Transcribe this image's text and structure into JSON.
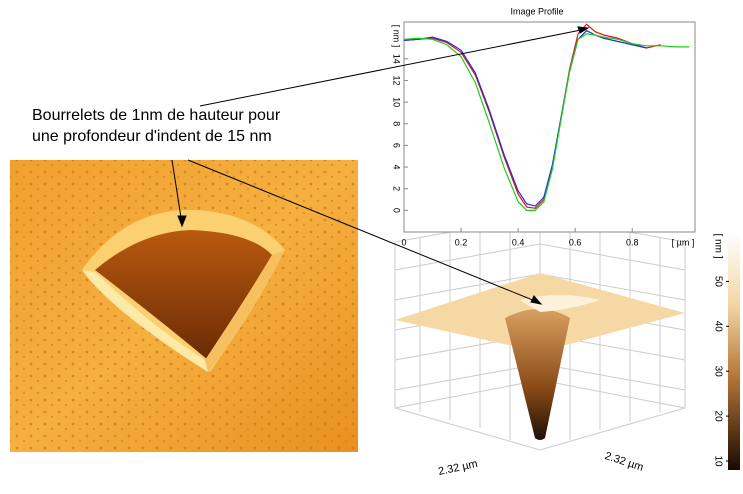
{
  "chart_data": {
    "type": "line",
    "title": "Image Profile",
    "x_label": "[ µm ]",
    "y_label": "[ nm ]",
    "x": [
      0,
      0.05,
      0.1,
      0.15,
      0.2,
      0.25,
      0.3,
      0.35,
      0.4,
      0.43,
      0.46,
      0.49,
      0.52,
      0.55,
      0.58,
      0.61,
      0.64,
      0.67,
      0.7,
      0.75,
      0.8,
      0.85,
      0.9,
      0.95,
      1.0
    ],
    "series": [
      {
        "name": "red",
        "color": "#e8101a",
        "values": [
          15.7,
          15.8,
          15.9,
          15.5,
          14.6,
          12.5,
          9,
          5,
          1.5,
          0.3,
          0.2,
          1,
          4,
          8.5,
          13,
          16.3,
          17.2,
          16.5,
          16.2,
          15.9,
          15.4,
          15.0,
          15.3,
          null,
          null
        ]
      },
      {
        "name": "blue",
        "color": "#2030e0",
        "values": [
          15.7,
          15.8,
          16.0,
          15.6,
          14.8,
          12.7,
          9.2,
          5.2,
          1.8,
          0.6,
          0.4,
          1.2,
          4.2,
          8.5,
          12.8,
          15.8,
          16.6,
          16.2,
          15.9,
          15.6,
          15.3,
          15.0,
          null,
          null,
          null
        ]
      },
      {
        "name": "green",
        "color": "#18d018",
        "values": [
          15.8,
          15.9,
          15.8,
          15.3,
          14.2,
          11.8,
          8,
          4,
          0.8,
          0,
          0,
          0.8,
          3.8,
          8.3,
          12.8,
          15.8,
          16.3,
          16.2,
          16.0,
          15.8,
          15.4,
          15.2,
          15.2,
          15.1,
          15.1
        ]
      }
    ],
    "xlim": [
      0,
      1.02
    ],
    "ylim": [
      -2,
      17.4
    ],
    "xticks": [
      0,
      0.2,
      0.4,
      0.6,
      0.8
    ],
    "yticks": [
      0,
      2,
      4,
      6,
      8,
      10,
      12,
      14
    ]
  },
  "annotation": {
    "lines": [
      "Bourrelets de 1nm de hauteur pour",
      "une profondeur d'indent de 15 nm"
    ]
  },
  "surface_3d": {
    "x_label": "2.32 µm",
    "y_label": "2.32 µm"
  },
  "colorbar": {
    "unit": "[ nm ]",
    "lim": [
      8,
      61
    ],
    "ticks": [
      50,
      40,
      30,
      20,
      10
    ]
  }
}
